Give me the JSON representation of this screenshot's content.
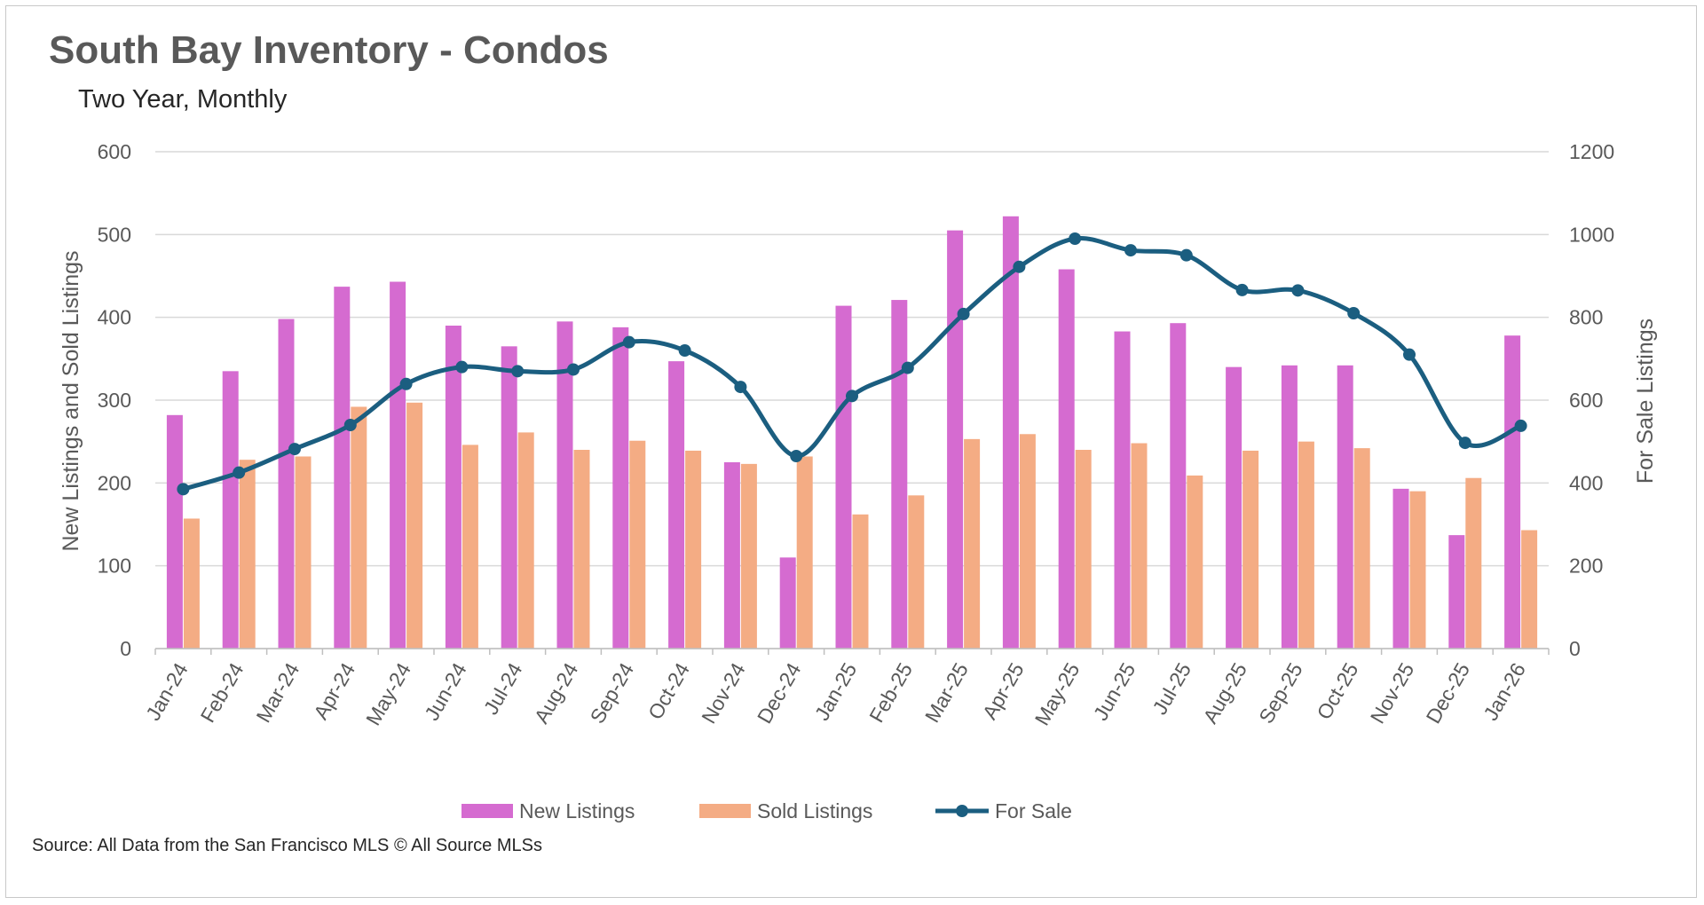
{
  "chart_data": {
    "type": "bar",
    "title": "South Bay Inventory - Condos",
    "subtitle": "Two Year, Monthly",
    "source": "Source: All Data from the San Francisco MLS © All Source MLSs",
    "ylabel": "New Listings and Sold Listings",
    "y2label": "For Sale Listings",
    "ylim": [
      0,
      600
    ],
    "y2lim": [
      0,
      1200
    ],
    "yticks": [
      0,
      100,
      200,
      300,
      400,
      500,
      600
    ],
    "y2ticks": [
      0,
      200,
      400,
      600,
      800,
      1000,
      1200
    ],
    "grid": true,
    "legend_position": "bottom",
    "categories": [
      "Jan-24",
      "Feb-24",
      "Mar-24",
      "Apr-24",
      "May-24",
      "Jun-24",
      "Jul-24",
      "Aug-24",
      "Sep-24",
      "Oct-24",
      "Nov-24",
      "Dec-24",
      "Jan-25",
      "Feb-25",
      "Mar-25",
      "Apr-25",
      "May-25",
      "Jun-25",
      "Jul-25",
      "Aug-25",
      "Sep-25",
      "Oct-25",
      "Nov-25",
      "Dec-25",
      "Jan-26"
    ],
    "series": [
      {
        "name": "New Listings",
        "type": "bar",
        "axis": "left",
        "color": "#d56bd0",
        "values": [
          282,
          335,
          398,
          437,
          443,
          390,
          365,
          395,
          388,
          347,
          225,
          110,
          414,
          421,
          505,
          522,
          458,
          383,
          393,
          340,
          342,
          342,
          193,
          137,
          378
        ]
      },
      {
        "name": "Sold Listings",
        "type": "bar",
        "axis": "left",
        "color": "#f4ac84",
        "values": [
          157,
          228,
          232,
          292,
          297,
          246,
          261,
          240,
          251,
          239,
          223,
          232,
          162,
          185,
          253,
          259,
          240,
          248,
          209,
          239,
          250,
          242,
          190,
          206,
          143
        ]
      },
      {
        "name": "For Sale",
        "type": "line",
        "axis": "right",
        "color": "#1b5e80",
        "values": [
          385,
          425,
          482,
          540,
          639,
          680,
          670,
          674,
          740,
          720,
          632,
          465,
          610,
          678,
          808,
          922,
          990,
          962,
          950,
          866,
          865,
          810,
          710,
          497,
          538
        ]
      }
    ]
  }
}
